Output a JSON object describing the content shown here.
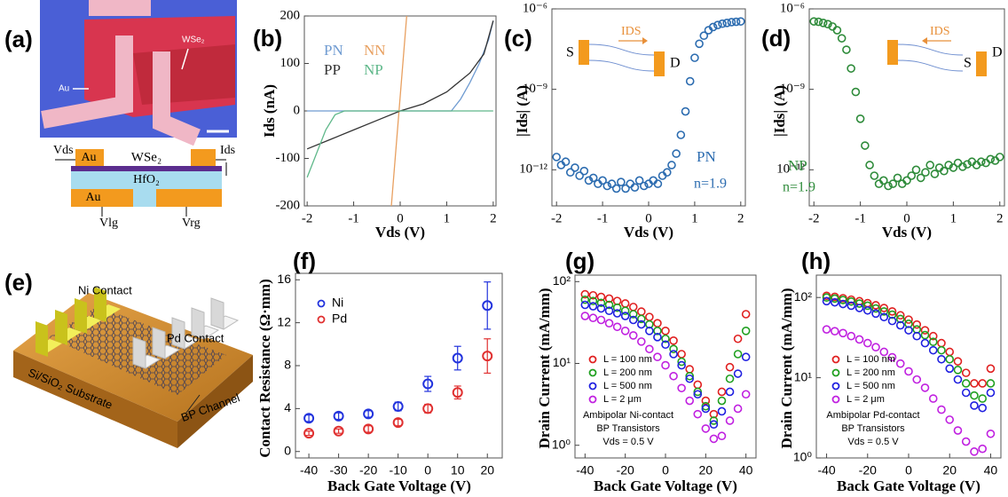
{
  "panel_a": {
    "label": "(a)",
    "photo_wse2": "WSe₂",
    "photo_au": "Au",
    "vds": "Vds",
    "au_top": "Au",
    "wse2": "WSe₂",
    "ids": "Ids",
    "hfo2": "HfO₂",
    "au_bottom": "Au",
    "vlg": "Vlg",
    "vrg": "Vrg"
  },
  "panel_e": {
    "label": "(e)",
    "ni": "Ni Contact",
    "pd": "Pd Contact",
    "substrate": "Si/SiO₂ Substrate",
    "channel": "BP Channel"
  },
  "chart_data": [
    {
      "type": "line",
      "panel_label": "(b)",
      "xlabel": "Vds (V)",
      "ylabel": "Ids (nA)",
      "xlim": [
        -2.06,
        2.06
      ],
      "ylim": [
        -200,
        200
      ],
      "xticks": [
        -2,
        -1,
        0,
        1,
        2
      ],
      "yticks": [
        -200,
        -100,
        0,
        100,
        200
      ],
      "series": [
        {
          "name": "PN",
          "color": "#6f9bd1",
          "x": [
            -2,
            1.1,
            1.3,
            1.5,
            1.7,
            1.9,
            2
          ],
          "values": [
            0,
            0,
            25,
            60,
            100,
            150,
            190
          ]
        },
        {
          "name": "NN",
          "color": "#e8a060",
          "x": [
            -0.19,
            0.14
          ],
          "values": [
            -200,
            200
          ]
        },
        {
          "name": "PP",
          "color": "#333333",
          "x": [
            -2,
            -1.5,
            -1,
            -0.5,
            0,
            0.5,
            1,
            1.5,
            1.8,
            2
          ],
          "values": [
            -80,
            -60,
            -40,
            -20,
            0,
            15,
            40,
            80,
            120,
            190
          ]
        },
        {
          "name": "NP",
          "color": "#5fb88a",
          "x": [
            -2,
            -1.8,
            -1.6,
            -1.4,
            -1.2,
            2
          ],
          "values": [
            -140,
            -90,
            -40,
            -8,
            0,
            0
          ]
        }
      ]
    },
    {
      "type": "scatter",
      "panel_label": "(c)",
      "xlabel": "Vds (V)",
      "ylabel": "|Ids| (A)",
      "log_y": true,
      "xlim": [
        -2.1,
        2.1
      ],
      "ylim": [
        4.5e-14,
        1e-06
      ],
      "xticks": [
        -2,
        -1,
        0,
        1,
        2
      ],
      "yticks": [
        {
          "value": 1e-12,
          "label": "10⁻¹²"
        },
        {
          "value": 1e-09,
          "label": "10⁻⁹"
        },
        {
          "value": 1e-06,
          "label": "10⁻⁶"
        }
      ],
      "annotation": "n=1.9",
      "inset": {
        "source": "S",
        "drain": "D",
        "current": "IDS"
      },
      "series": [
        {
          "name": "PN",
          "color": "#2c6cb0",
          "x": [
            -2,
            -1.9,
            -1.8,
            -1.7,
            -1.6,
            -1.5,
            -1.4,
            -1.3,
            -1.2,
            -1.1,
            -1,
            -0.9,
            -0.8,
            -0.7,
            -0.6,
            -0.5,
            -0.4,
            -0.3,
            -0.2,
            -0.1,
            0,
            0.1,
            0.2,
            0.3,
            0.4,
            0.5,
            0.6,
            0.7,
            0.8,
            0.9,
            1,
            1.1,
            1.2,
            1.3,
            1.4,
            1.5,
            1.6,
            1.7,
            1.8,
            1.9,
            2
          ],
          "values": [
            3e-12,
            1.5e-12,
            2e-12,
            8e-13,
            1.2e-12,
            6e-13,
            9e-13,
            4e-13,
            5e-13,
            3e-13,
            4e-13,
            2.5e-13,
            3e-13,
            2e-13,
            3.5e-13,
            2e-13,
            3e-13,
            2.2e-13,
            4e-13,
            2.5e-13,
            3e-13,
            4e-13,
            3e-13,
            6e-13,
            8e-13,
            1.5e-12,
            4e-12,
            2e-11,
            1.5e-10,
            2e-09,
            1.5e-08,
            5e-08,
            1e-07,
            1.6e-07,
            2.1e-07,
            2.5e-07,
            2.8e-07,
            3e-07,
            3.2e-07,
            3.3e-07,
            3.4e-07
          ]
        }
      ]
    },
    {
      "type": "scatter",
      "panel_label": "(d)",
      "xlabel": "Vds (V)",
      "ylabel": "|Ids| (A)",
      "log_y": true,
      "xlim": [
        -2.1,
        2.1
      ],
      "ylim": [
        4.5e-14,
        1e-06
      ],
      "xticks": [
        -2,
        -1,
        0,
        1,
        2
      ],
      "yticks": [
        {
          "value": 1e-12,
          "label": "10⁻¹²"
        },
        {
          "value": 1e-09,
          "label": "10⁻⁹"
        },
        {
          "value": 1e-06,
          "label": "10⁻⁶"
        }
      ],
      "annotation": "n=1.9",
      "inset": {
        "source": "S",
        "drain": "D",
        "current": "IDS"
      },
      "series": [
        {
          "name": "NP",
          "color": "#2e8b3a",
          "x": [
            -2,
            -1.9,
            -1.8,
            -1.7,
            -1.6,
            -1.5,
            -1.4,
            -1.3,
            -1.2,
            -1.1,
            -1,
            -0.9,
            -0.8,
            -0.7,
            -0.6,
            -0.5,
            -0.4,
            -0.3,
            -0.2,
            -0.1,
            0,
            0.1,
            0.2,
            0.3,
            0.4,
            0.5,
            0.6,
            0.7,
            0.8,
            0.9,
            1,
            1.1,
            1.2,
            1.3,
            1.4,
            1.5,
            1.6,
            1.7,
            1.8,
            1.9,
            2
          ],
          "values": [
            3.4e-07,
            3.3e-07,
            3e-07,
            2.7e-07,
            2.2e-07,
            1.6e-07,
            8e-08,
            3e-08,
            6e-09,
            8e-10,
            8e-11,
            8e-12,
            1.5e-12,
            6e-13,
            3e-13,
            4e-13,
            2.5e-13,
            3e-13,
            5e-13,
            3e-13,
            4e-13,
            6e-13,
            1e-12,
            5e-13,
            8e-13,
            1.5e-12,
            7e-13,
            1.2e-12,
            9e-13,
            1.5e-12,
            1.2e-12,
            1.8e-12,
            1.3e-12,
            1.6e-12,
            2e-12,
            1.5e-12,
            2e-12,
            1.8e-12,
            2.5e-12,
            2.2e-12,
            3e-12
          ]
        }
      ]
    },
    {
      "type": "scatter",
      "panel_label": "(f)",
      "xlabel": "Back Gate Voltage (V)",
      "ylabel": "Contact Resistance (Ω·mm)",
      "xlim": [
        -44.5,
        25
      ],
      "ylim": [
        -0.6,
        16.6
      ],
      "xticks": [
        -40,
        -30,
        -20,
        -10,
        0,
        10,
        20
      ],
      "yticks": [
        0,
        4,
        8,
        12,
        16
      ],
      "x": [
        -40,
        -30,
        -20,
        -10,
        0,
        10,
        20
      ],
      "series": [
        {
          "name": "Ni",
          "color": "#2233dd",
          "values": [
            3.1,
            3.3,
            3.5,
            4.2,
            6.3,
            8.7,
            13.6
          ],
          "errors": [
            0.3,
            0.3,
            0.3,
            0.4,
            0.7,
            1.1,
            2.2
          ]
        },
        {
          "name": "Pd",
          "color": "#e03030",
          "values": [
            1.7,
            1.9,
            2.1,
            2.7,
            4.0,
            5.5,
            8.9
          ],
          "errors": [
            0.2,
            0.2,
            0.3,
            0.3,
            0.4,
            0.6,
            1.6
          ]
        }
      ]
    },
    {
      "type": "scatter",
      "panel_label": "(g)",
      "xlabel": "Back Gate Voltage (V)",
      "ylabel": "Drain Current (mA/mm)",
      "log_y": true,
      "xlim": [
        -45,
        45
      ],
      "ylim": [
        0.7,
        120
      ],
      "xticks": [
        -40,
        -20,
        0,
        20,
        40
      ],
      "yticks": [
        {
          "value": 1,
          "label": "10⁰"
        },
        {
          "value": 10,
          "label": "10¹"
        },
        {
          "value": 100,
          "label": "10²"
        }
      ],
      "notes": [
        "Ambipolar Ni-contact",
        "BP Transistors",
        "Vds = 0.5 V"
      ],
      "x": [
        -40,
        -36,
        -32,
        -28,
        -24,
        -20,
        -16,
        -12,
        -8,
        -4,
        0,
        4,
        8,
        12,
        16,
        20,
        24,
        28,
        32,
        36,
        40
      ],
      "series": [
        {
          "name": "L = 100 nm",
          "color": "#e02020",
          "values": [
            70,
            68,
            65,
            62,
            58,
            54,
            49,
            43,
            37,
            31,
            25,
            19,
            13,
            8.5,
            5.5,
            3.5,
            2.4,
            4.5,
            9,
            20,
            40
          ]
        },
        {
          "name": "L = 200 nm",
          "color": "#20a020",
          "values": [
            60,
            58,
            55,
            52,
            48,
            44,
            40,
            35,
            30,
            25,
            20,
            15,
            10.5,
            7,
            4.5,
            3,
            2.0,
            3.5,
            6.5,
            13,
            25
          ]
        },
        {
          "name": "L = 500 nm",
          "color": "#2020e0",
          "values": [
            52,
            50,
            47,
            44,
            41,
            38,
            34,
            30,
            25,
            21,
            17,
            13,
            9.5,
            6.5,
            4.2,
            2.8,
            1.8,
            2.6,
            4.5,
            7.5,
            12
          ]
        },
        {
          "name": "L = 2 μm",
          "color": "#c020e0",
          "values": [
            38,
            36,
            34,
            31,
            28,
            25,
            22,
            18.5,
            15,
            12,
            9.5,
            7,
            5,
            3.5,
            2.4,
            1.6,
            1.2,
            1.3,
            2,
            2.8,
            4.2
          ]
        }
      ]
    },
    {
      "type": "scatter",
      "panel_label": "(h)",
      "xlabel": "Back Gate Voltage (V)",
      "ylabel": "Drain Current (mA/mm)",
      "log_y": true,
      "xlim": [
        -45,
        45
      ],
      "ylim": [
        1,
        190
      ],
      "xticks": [
        -40,
        -20,
        0,
        20,
        40
      ],
      "yticks": [
        {
          "value": 1,
          "label": "10⁰"
        },
        {
          "value": 10,
          "label": "10¹"
        },
        {
          "value": 100,
          "label": "10²"
        }
      ],
      "notes": [
        "Ambipolar Pd-contact",
        "BP Transistors",
        "Vds = 0.5 V"
      ],
      "x": [
        -40,
        -36,
        -32,
        -28,
        -24,
        -20,
        -16,
        -12,
        -8,
        -4,
        0,
        4,
        8,
        12,
        16,
        20,
        24,
        28,
        32,
        36,
        40
      ],
      "series": [
        {
          "name": "L = 100 nm",
          "color": "#e02020",
          "values": [
            105,
            102,
            98,
            94,
            90,
            85,
            80,
            74,
            67,
            60,
            53,
            46,
            39,
            33,
            27,
            21,
            16,
            11.5,
            8.5,
            8.5,
            13
          ]
        },
        {
          "name": "L = 200 nm",
          "color": "#20a020",
          "values": [
            100,
            97,
            93,
            89,
            84,
            79,
            73,
            67,
            61,
            54,
            47,
            40,
            34,
            28,
            22,
            17,
            12.5,
            8.5,
            6,
            5.5,
            8.5
          ]
        },
        {
          "name": "L = 500 nm",
          "color": "#2020e0",
          "values": [
            90,
            87,
            83,
            79,
            74,
            69,
            63,
            57,
            51,
            45,
            39,
            33,
            27,
            22,
            17,
            13,
            9.5,
            6.5,
            4.5,
            4.2,
            6.5
          ]
        },
        {
          "name": "L = 2 μm",
          "color": "#c020e0",
          "values": [
            40,
            38,
            36,
            33,
            30,
            27,
            24,
            21,
            18,
            15,
            12,
            9.5,
            7.5,
            5.5,
            4,
            3,
            2.2,
            1.6,
            1.2,
            1.3,
            2
          ]
        }
      ]
    }
  ]
}
